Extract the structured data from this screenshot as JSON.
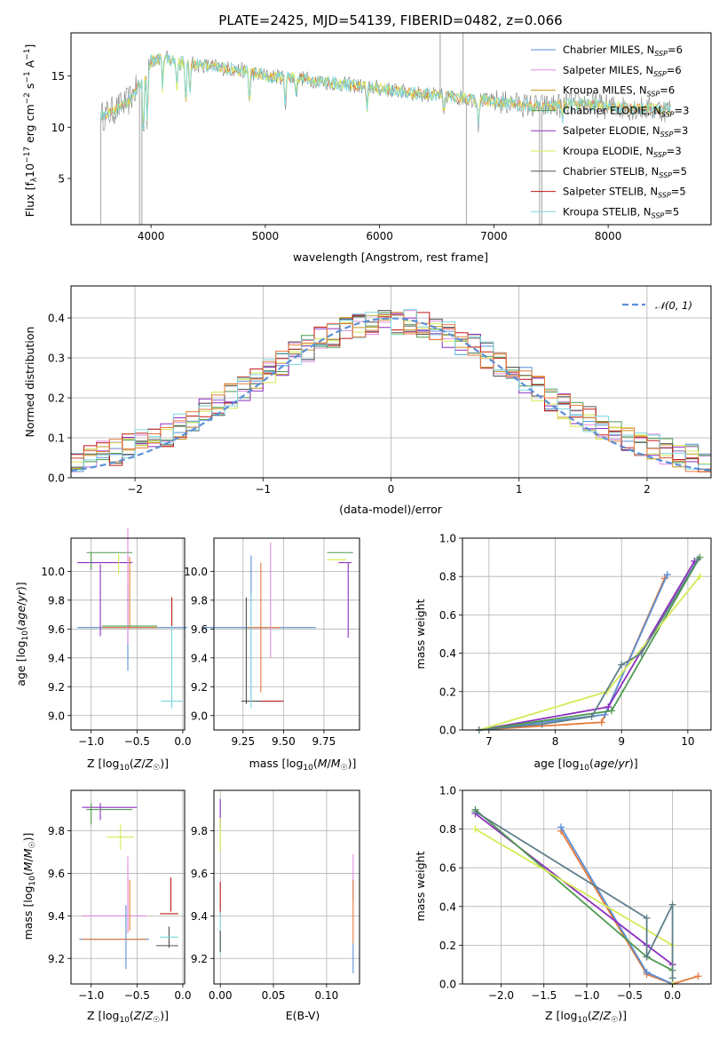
{
  "figure_title": "PLATE=2425, MJD=54139, FIBERID=0482, z=0.066",
  "colors": {
    "Chabrier MILES": "#5b8fd8",
    "Salpeter MILES": "#e08de0",
    "Kroupa MILES": "#c8961e",
    "Chabrier ELODIE": "#4f9a4f",
    "Salpeter ELODIE": "#8e2fbf",
    "Kroupa ELODIE": "#d6ea54",
    "Chabrier STELIB": "#505050",
    "Salpeter STELIB": "#c01818",
    "Kroupa STELIB": "#7cd7df",
    "orange": "#e67a3a",
    "gray": "#9a9a9a",
    "gauss": "#5b8fd8"
  },
  "chart_data": [
    {
      "type": "line",
      "title": "PLATE=2425, MJD=54139, FIBERID=0482, z=0.066",
      "xlabel": "wavelength [Angstrom, rest frame]",
      "ylabel": "Flux [f_λ 10^-17 erg cm^-2 s^-1 A^-1]",
      "xlim": [
        3300,
        8900
      ],
      "ylim": [
        0.5,
        19.2
      ],
      "xticks": [
        "4000",
        "5000",
        "6000",
        "7000",
        "8000"
      ],
      "yticks": [
        "5",
        "10",
        "15"
      ],
      "grid": false,
      "legend_position": "right",
      "legend": [
        {
          "name": "Chabrier MILES",
          "nssp": "6"
        },
        {
          "name": "Salpeter MILES",
          "nssp": "6"
        },
        {
          "name": "Kroupa MILES",
          "nssp": "6"
        },
        {
          "name": "Chabrier ELODIE",
          "nssp": "3"
        },
        {
          "name": "Salpeter ELODIE",
          "nssp": "3"
        },
        {
          "name": "Kroupa ELODIE",
          "nssp": "3"
        },
        {
          "name": "Chabrier STELIB",
          "nssp": "5"
        },
        {
          "name": "Salpeter STELIB",
          "nssp": "5"
        },
        {
          "name": "Kroupa STELIB",
          "nssp": "5"
        }
      ],
      "spectrum_shape": {
        "x": [
          3560,
          3650,
          3800,
          3950,
          4000,
          4100,
          4300,
          4500,
          4800,
          5000,
          5300,
          5600,
          6000,
          6300,
          6600,
          7000,
          7400,
          7800,
          8000,
          8500
        ],
        "y": [
          11.0,
          11.5,
          12.5,
          15.0,
          16.5,
          16.8,
          16.2,
          16.0,
          15.5,
          15.0,
          14.8,
          14.3,
          13.8,
          13.3,
          13.0,
          12.5,
          12.0,
          12.3,
          12.0,
          11.7
        ]
      }
    },
    {
      "type": "line",
      "xlabel": "(data-model)/error",
      "ylabel": "Normed distribution",
      "xlim": [
        -2.5,
        2.5
      ],
      "ylim": [
        0,
        0.48
      ],
      "xticks": [
        "−2",
        "−1",
        "0",
        "1",
        "2"
      ],
      "yticks": [
        "0.0",
        "0.1",
        "0.2",
        "0.3",
        "0.4"
      ],
      "grid": true,
      "legend_position": "top-right",
      "legend": [
        {
          "name": "𝒩(0, 1)"
        }
      ]
    },
    {
      "type": "scatter",
      "xlabel": "Z [log10(Z/Z☉)]",
      "ylabel": "age  [log10(age/yr)]",
      "xlim": [
        -1.22,
        0.02
      ],
      "ylim": [
        8.9,
        10.23
      ],
      "xticks": [
        "−1.0",
        "−0.5",
        "0.0"
      ],
      "yticks": [
        "9.0",
        "9.2",
        "9.4",
        "9.6",
        "9.8",
        "10.0"
      ],
      "grid": true
    },
    {
      "type": "scatter",
      "xlabel": "mass [log10(M/M☉)]",
      "ylabel": "",
      "xlim": [
        9.07,
        9.97
      ],
      "ylim": [
        8.9,
        10.23
      ],
      "xticks": [
        "9.25",
        "9.50",
        "9.75"
      ],
      "yticks": [
        "9.0",
        "9.2",
        "9.4",
        "9.6",
        "9.8",
        "10.0"
      ],
      "grid": true
    },
    {
      "type": "line",
      "xlabel": "age  [log10(age/yr)]",
      "ylabel": "mass weight",
      "xlim": [
        6.6,
        10.35
      ],
      "ylim": [
        0,
        1
      ],
      "xticks": [
        "7",
        "8",
        "9",
        "10"
      ],
      "yticks": [
        "0.0",
        "0.2",
        "0.4",
        "0.6",
        "0.8",
        "1.0"
      ],
      "grid": true,
      "series": [
        {
          "color": "#e67a3a",
          "x": [
            6.85,
            8.7,
            9.65
          ],
          "y": [
            0.0,
            0.04,
            0.79
          ]
        },
        {
          "color": "#5b8fd8",
          "x": [
            6.85,
            8.75,
            9.69
          ],
          "y": [
            0.0,
            0.08,
            0.81
          ]
        },
        {
          "color": "#8e2fbf",
          "x": [
            6.85,
            8.8,
            10.1
          ],
          "y": [
            0.0,
            0.12,
            0.88
          ]
        },
        {
          "color": "#4f9a4f",
          "x": [
            6.85,
            8.85,
            10.18
          ],
          "y": [
            0.0,
            0.1,
            0.9
          ]
        },
        {
          "color": "#d6ea54",
          "x": [
            6.85,
            8.78,
            10.18
          ],
          "y": [
            0.0,
            0.2,
            0.8
          ]
        },
        {
          "color": "#5e7f8a",
          "x": [
            6.85,
            7.8,
            8.55,
            9.0,
            9.3,
            10.15
          ],
          "y": [
            0.0,
            0.03,
            0.07,
            0.34,
            0.4,
            0.89
          ]
        }
      ]
    },
    {
      "type": "scatter",
      "xlabel": "Z [log10(Z/Z☉)]",
      "ylabel": "mass [log10(M/M☉)]",
      "xlim": [
        -1.22,
        0.02
      ],
      "ylim": [
        9.08,
        9.99
      ],
      "xticks": [
        "−1.0",
        "−0.5",
        "0.0"
      ],
      "yticks": [
        "9.2",
        "9.4",
        "9.6",
        "9.8"
      ],
      "grid": true
    },
    {
      "type": "scatter",
      "xlabel": "E(B-V)",
      "ylabel": "",
      "xlim": [
        -0.006,
        0.131
      ],
      "ylim": [
        9.08,
        9.99
      ],
      "xticks": [
        "0.00",
        "0.05",
        "0.10"
      ],
      "yticks": [
        "9.2",
        "9.4",
        "9.6",
        "9.8"
      ],
      "grid": true
    },
    {
      "type": "line",
      "xlabel": "Z [log10(Z/Z☉)]",
      "ylabel": "mass weight",
      "xlim": [
        -2.45,
        0.45
      ],
      "ylim": [
        0,
        1
      ],
      "xticks": [
        "−2.0",
        "−1.5",
        "−1.0",
        "−0.5",
        "0.0"
      ],
      "yticks": [
        "0.0",
        "0.2",
        "0.4",
        "0.6",
        "0.8",
        "1.0"
      ],
      "grid": true,
      "series": [
        {
          "color": "#e67a3a",
          "x": [
            -1.3,
            -0.3,
            0.0,
            0.3
          ],
          "y": [
            0.79,
            0.05,
            0.0,
            0.04
          ]
        },
        {
          "color": "#5b8fd8",
          "x": [
            -1.3,
            -0.3,
            0.0
          ],
          "y": [
            0.81,
            0.06,
            0.0
          ]
        },
        {
          "color": "#8e2fbf",
          "x": [
            -2.3,
            -0.3,
            0.0
          ],
          "y": [
            0.88,
            0.2,
            0.1
          ]
        },
        {
          "color": "#4f9a4f",
          "x": [
            -2.3,
            -0.3,
            0.0
          ],
          "y": [
            0.9,
            0.14,
            0.07
          ]
        },
        {
          "color": "#d6ea54",
          "x": [
            -2.3,
            0.0,
            0.0
          ],
          "y": [
            0.8,
            0.2,
            0.0
          ]
        },
        {
          "color": "#5e7f8a",
          "x": [
            -2.3,
            -0.3,
            -0.3,
            0.0,
            0.0
          ],
          "y": [
            0.89,
            0.34,
            0.14,
            0.41,
            0.03
          ]
        }
      ]
    }
  ]
}
